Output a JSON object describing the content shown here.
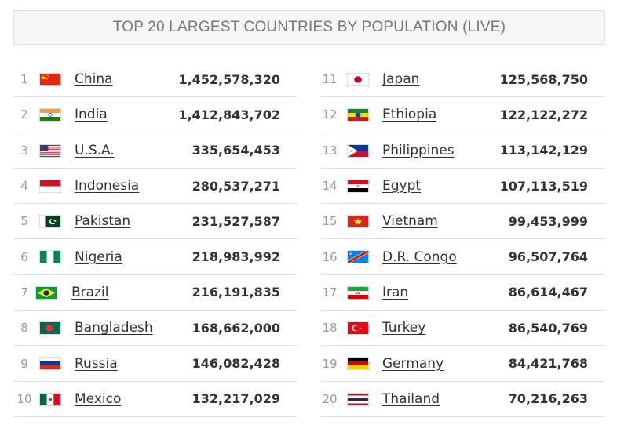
{
  "header": {
    "title": "TOP 20 LARGEST COUNTRIES BY POPULATION (LIVE)"
  },
  "countries": [
    {
      "rank": "1",
      "name": "China",
      "population": "1,452,578,320",
      "flag": "china-flag-icon"
    },
    {
      "rank": "2",
      "name": "India",
      "population": "1,412,843,702",
      "flag": "india-flag-icon"
    },
    {
      "rank": "3",
      "name": "U.S.A.",
      "population": "335,654,453",
      "flag": "usa-flag-icon"
    },
    {
      "rank": "4",
      "name": "Indonesia",
      "population": "280,537,271",
      "flag": "indonesia-flag-icon"
    },
    {
      "rank": "5",
      "name": "Pakistan",
      "population": "231,527,587",
      "flag": "pakistan-flag-icon"
    },
    {
      "rank": "6",
      "name": "Nigeria",
      "population": "218,983,992",
      "flag": "nigeria-flag-icon"
    },
    {
      "rank": "7",
      "name": "Brazil",
      "population": "216,191,835",
      "flag": "brazil-flag-icon"
    },
    {
      "rank": "8",
      "name": "Bangladesh",
      "population": "168,662,000",
      "flag": "bangladesh-flag-icon"
    },
    {
      "rank": "9",
      "name": "Russia",
      "population": "146,082,428",
      "flag": "russia-flag-icon"
    },
    {
      "rank": "10",
      "name": "Mexico",
      "population": "132,217,029",
      "flag": "mexico-flag-icon"
    },
    {
      "rank": "11",
      "name": "Japan",
      "population": "125,568,750",
      "flag": "japan-flag-icon"
    },
    {
      "rank": "12",
      "name": "Ethiopia",
      "population": "122,122,272",
      "flag": "ethiopia-flag-icon"
    },
    {
      "rank": "13",
      "name": "Philippines",
      "population": "113,142,129",
      "flag": "philippines-flag-icon"
    },
    {
      "rank": "14",
      "name": "Egypt",
      "population": "107,113,519",
      "flag": "egypt-flag-icon"
    },
    {
      "rank": "15",
      "name": "Vietnam",
      "population": "99,453,999",
      "flag": "vietnam-flag-icon"
    },
    {
      "rank": "16",
      "name": "D.R. Congo",
      "population": "96,507,764",
      "flag": "dr-congo-flag-icon"
    },
    {
      "rank": "17",
      "name": "Iran",
      "population": "86,614,467",
      "flag": "iran-flag-icon"
    },
    {
      "rank": "18",
      "name": "Turkey",
      "population": "86,540,769",
      "flag": "turkey-flag-icon"
    },
    {
      "rank": "19",
      "name": "Germany",
      "population": "84,421,768",
      "flag": "germany-flag-icon"
    },
    {
      "rank": "20",
      "name": "Thailand",
      "population": "70,216,263",
      "flag": "thailand-flag-icon"
    }
  ]
}
